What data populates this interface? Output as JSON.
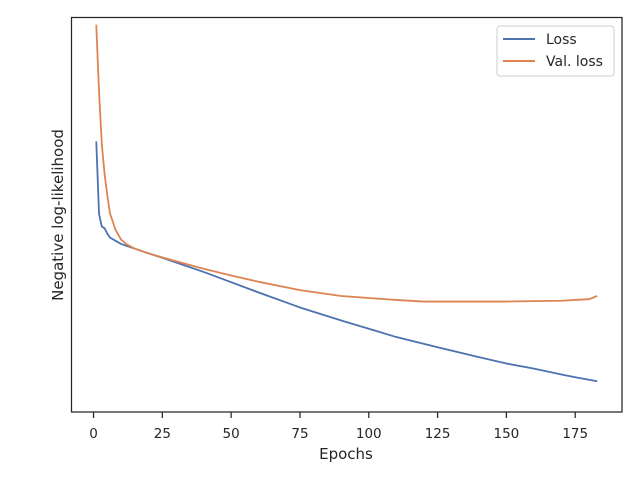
{
  "chart_data": {
    "type": "line",
    "title": "",
    "xlabel": "Epochs",
    "ylabel": "Negative log-likelihood",
    "xlim": [
      -8,
      192
    ],
    "ylim": [
      0.0,
      1.0
    ],
    "y_tick_labels_shown": false,
    "xticks": [
      0,
      25,
      50,
      75,
      100,
      125,
      150,
      175
    ],
    "grid": false,
    "legend_position": "top-right",
    "series": [
      {
        "name": "Loss",
        "color": "#4c72b0",
        "x": [
          1,
          2,
          3,
          4,
          5,
          6,
          8,
          10,
          12,
          15,
          20,
          25,
          30,
          40,
          50,
          60,
          75,
          90,
          100,
          110,
          125,
          140,
          150,
          160,
          170,
          175,
          183
        ],
        "y": [
          0.686,
          0.502,
          0.47,
          0.466,
          0.452,
          0.442,
          0.434,
          0.426,
          0.421,
          0.414,
          0.402,
          0.391,
          0.379,
          0.355,
          0.329,
          0.303,
          0.265,
          0.232,
          0.211,
          0.19,
          0.164,
          0.139,
          0.123,
          0.11,
          0.095,
          0.088,
          0.078
        ]
      },
      {
        "name": "Val. loss",
        "color": "#dd8452",
        "x": [
          1,
          2,
          3,
          4,
          5,
          6,
          8,
          10,
          12,
          15,
          20,
          25,
          30,
          40,
          50,
          60,
          75,
          90,
          100,
          110,
          120,
          130,
          140,
          150,
          160,
          170,
          175,
          180,
          183
        ],
        "y": [
          0.982,
          0.812,
          0.68,
          0.604,
          0.55,
          0.503,
          0.462,
          0.437,
          0.425,
          0.414,
          0.402,
          0.392,
          0.382,
          0.363,
          0.346,
          0.33,
          0.309,
          0.294,
          0.289,
          0.284,
          0.28,
          0.28,
          0.28,
          0.28,
          0.281,
          0.282,
          0.284,
          0.286,
          0.294
        ]
      }
    ]
  }
}
